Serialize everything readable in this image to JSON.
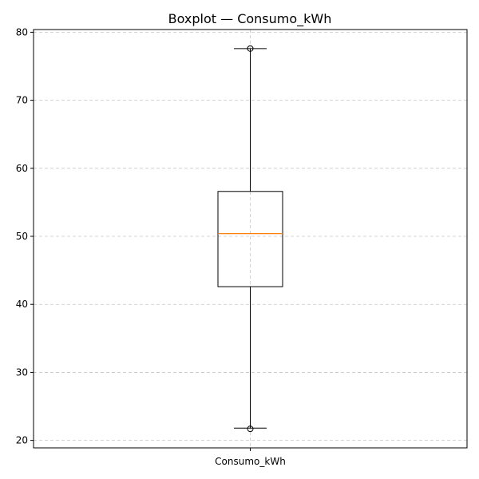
{
  "chart_data": {
    "type": "boxplot",
    "title": "Boxplot — Consumo_kWh",
    "xlabel": "",
    "ylabel": "",
    "categories": [
      "Consumo_kWh"
    ],
    "ylim": [
      18.9,
      80.4
    ],
    "yticks": [
      20,
      30,
      40,
      50,
      60,
      70,
      80
    ],
    "grid": true,
    "boxes": [
      {
        "label": "Consumo_kWh",
        "whisker_low": 21.8,
        "q1": 42.6,
        "median": 50.4,
        "q3": 56.6,
        "whisker_high": 77.6,
        "fliers": [
          21.7,
          77.6
        ]
      }
    ],
    "colors": {
      "median": "#ff7f0e",
      "box": "#000000",
      "grid": "#b0b0b0"
    }
  }
}
